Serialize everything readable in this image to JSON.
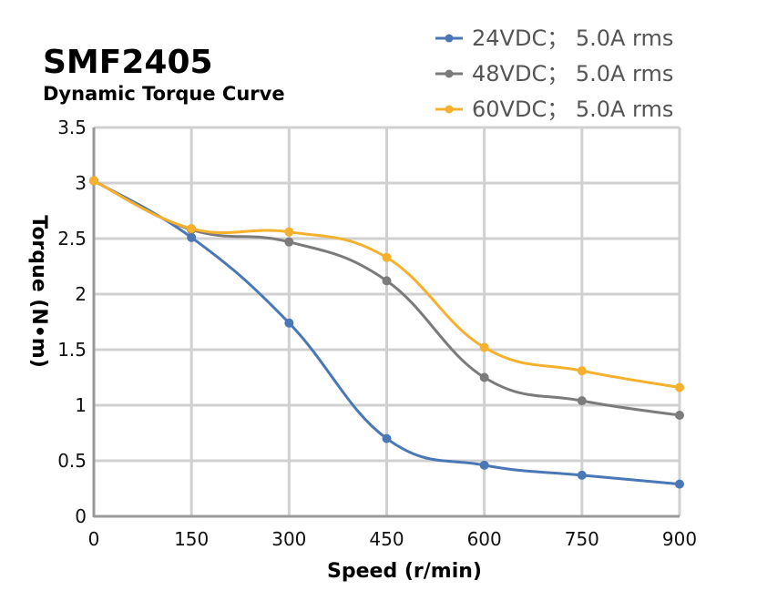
{
  "chart_data": {
    "type": "line",
    "title": "SMF2405",
    "subtitle": "Dynamic Torque Curve",
    "xlabel": "Speed (r/min)",
    "ylabel": "Torque (N•m)",
    "x": [
      0,
      150,
      300,
      450,
      600,
      750,
      900
    ],
    "xlim": [
      0,
      900
    ],
    "ylim": [
      0,
      3.5
    ],
    "xticks": [
      "0",
      "150",
      "300",
      "450",
      "600",
      "750",
      "900"
    ],
    "yticks": [
      "0",
      "0.5",
      "1",
      "1.5",
      "2",
      "2.5",
      "3",
      "3.5"
    ],
    "grid": true,
    "smooth": true,
    "legend_position": "top-right",
    "series": [
      {
        "name": "24VDC； 5.0A rms",
        "color": "#4a78b5",
        "values": [
          3.02,
          2.51,
          1.74,
          0.7,
          0.46,
          0.37,
          0.29
        ]
      },
      {
        "name": "48VDC； 5.0A rms",
        "color": "#7b7b7b",
        "values": [
          3.02,
          2.58,
          2.47,
          2.12,
          1.25,
          1.04,
          0.91
        ]
      },
      {
        "name": "60VDC； 5.0A rms",
        "color": "#f5b02d",
        "values": [
          3.02,
          2.59,
          2.56,
          2.33,
          1.52,
          1.31,
          1.16
        ]
      }
    ]
  }
}
